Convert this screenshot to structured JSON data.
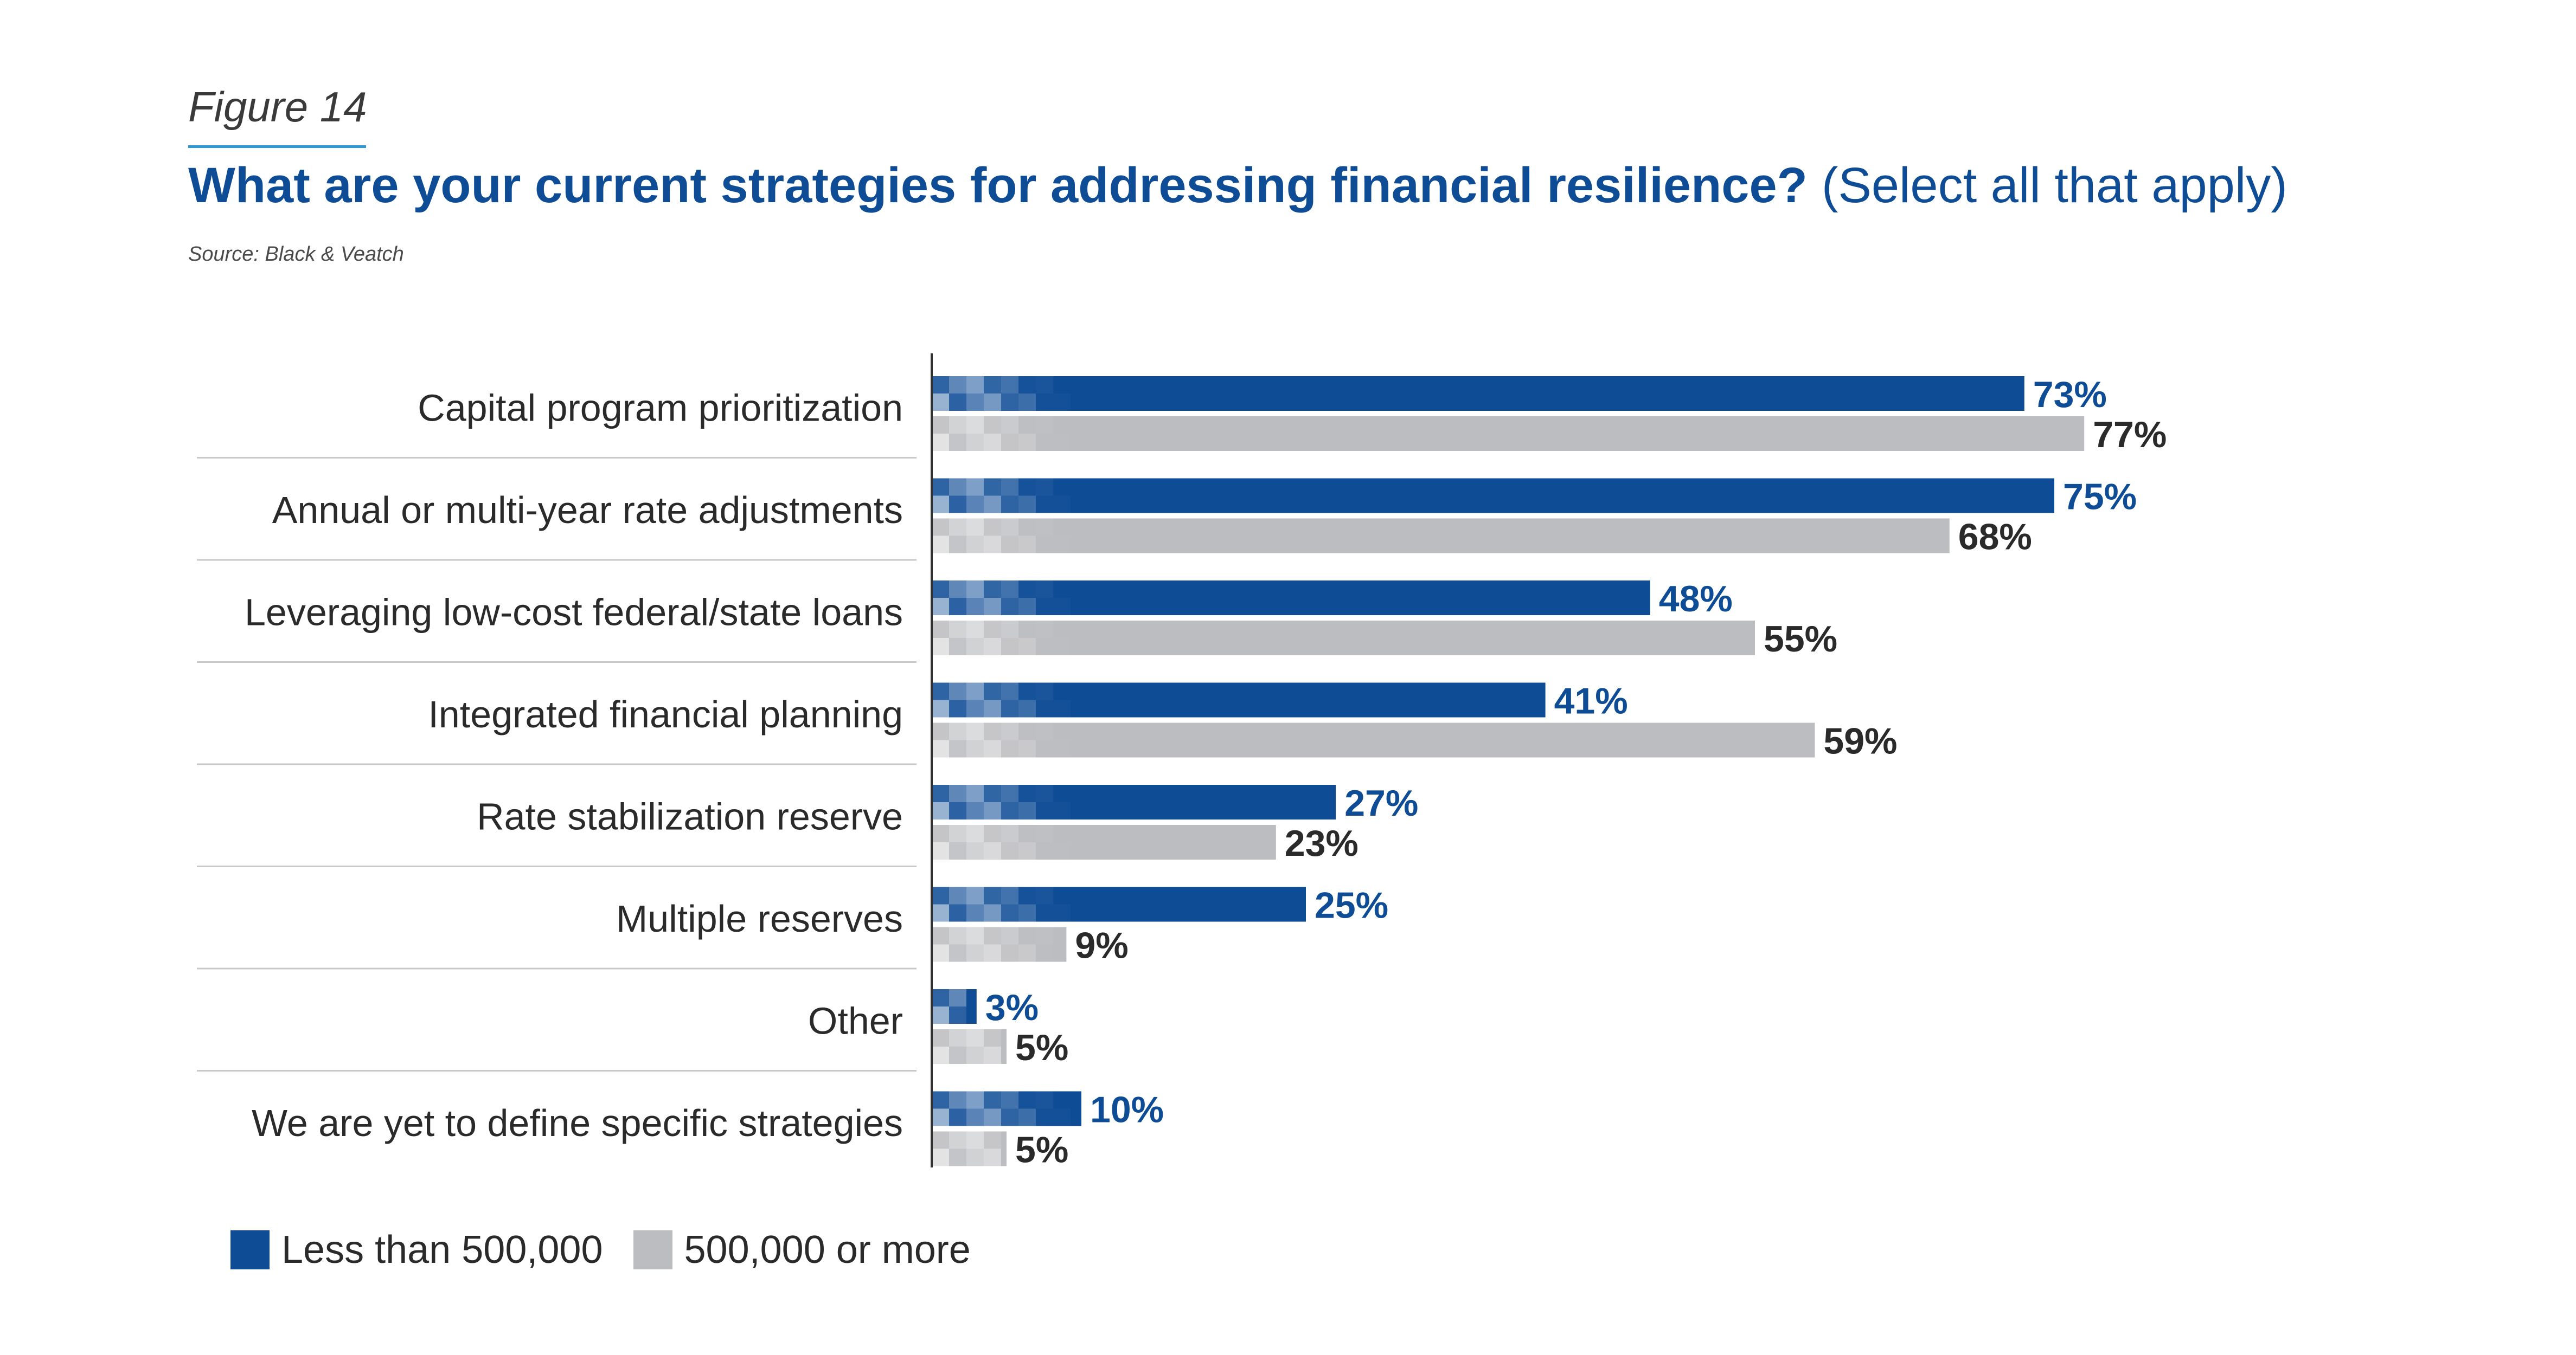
{
  "figure_label": "Figure 14",
  "title": "What are your current strategies for addressing financial resilience?",
  "subtitle": "(Select all that apply)",
  "source": "Source: Black & Veatch",
  "colors": {
    "series_1": "#0e4c96",
    "series_2": "#bcbdc0",
    "title": "#0e4c96",
    "label_series_1": "#0e4c96",
    "label_series_2": "#2a2a2a",
    "divider": "#c9c9c9",
    "axis": "#333333"
  },
  "chart_data": {
    "type": "bar",
    "orientation": "horizontal",
    "categories": [
      "Capital program prioritization",
      "Annual or multi-year rate adjustments",
      "Leveraging low-cost federal/state loans",
      "Integrated financial planning",
      "Rate stabilization reserve",
      "Multiple reserves",
      "Other",
      "We are yet to define specific strategies"
    ],
    "series": [
      {
        "name": "Less than 500,000",
        "values": [
          73,
          75,
          48,
          41,
          27,
          25,
          3,
          10
        ]
      },
      {
        "name": "500,000 or more",
        "values": [
          77,
          68,
          55,
          59,
          23,
          9,
          5,
          5
        ]
      }
    ],
    "value_suffix": "%",
    "xlim": [
      0,
      100
    ],
    "grid": false,
    "legend_position": "bottom-left"
  }
}
